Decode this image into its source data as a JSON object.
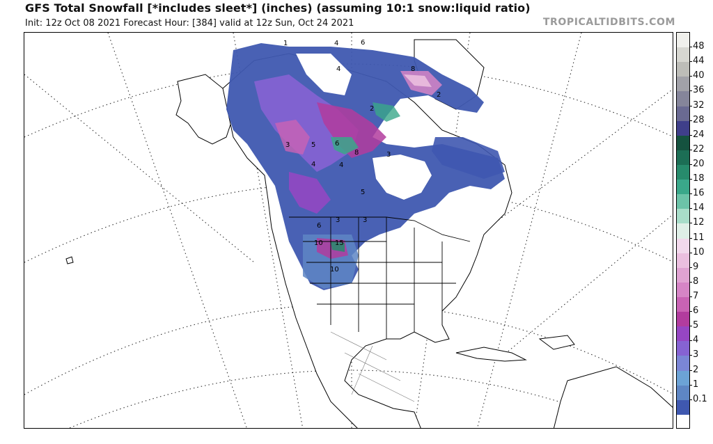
{
  "header": {
    "title": "GFS Total Snowfall [*includes sleet*] (inches) (assuming 10:1 snow:liquid ratio)",
    "subtitle": "Init: 12z Oct 08 2021   Forecast Hour: [384]   valid at 12z Sun, Oct 24 2021",
    "source": "TROPICALTIDBITS.COM"
  },
  "map": {
    "region": "North America",
    "overlay": "snowfall",
    "contour_numbers": [
      "1",
      "4",
      "6",
      "4",
      "8",
      "2",
      "2",
      "3",
      "5",
      "6",
      "8",
      "3",
      "4",
      "4",
      "5",
      "3",
      "3",
      "6",
      "10",
      "15",
      "10"
    ]
  },
  "legend": {
    "labels": [
      "48",
      "44",
      "40",
      "36",
      "32",
      "28",
      "24",
      "22",
      "20",
      "18",
      "16",
      "14",
      "12",
      "11",
      "10",
      "9",
      "8",
      "7",
      "6",
      "5",
      "4",
      "3",
      "2",
      "1",
      "0.1"
    ],
    "colors": [
      "#f0f0ec",
      "#d7d7d1",
      "#bdbdb8",
      "#a1a1a8",
      "#85859a",
      "#6a6a92",
      "#3f3f8a",
      "#15523f",
      "#1c6e55",
      "#278b6c",
      "#3aa88a",
      "#6cc3a8",
      "#a8ddc9",
      "#dfefe7",
      "#f2d9ec",
      "#ebbfdf",
      "#e0a3d2",
      "#d685c6",
      "#c963b4",
      "#b23c9e",
      "#9646c3",
      "#8663d3",
      "#7b86d6",
      "#6ca3d6",
      "#5e86c4",
      "#3f58b0",
      "#ffffff"
    ]
  }
}
